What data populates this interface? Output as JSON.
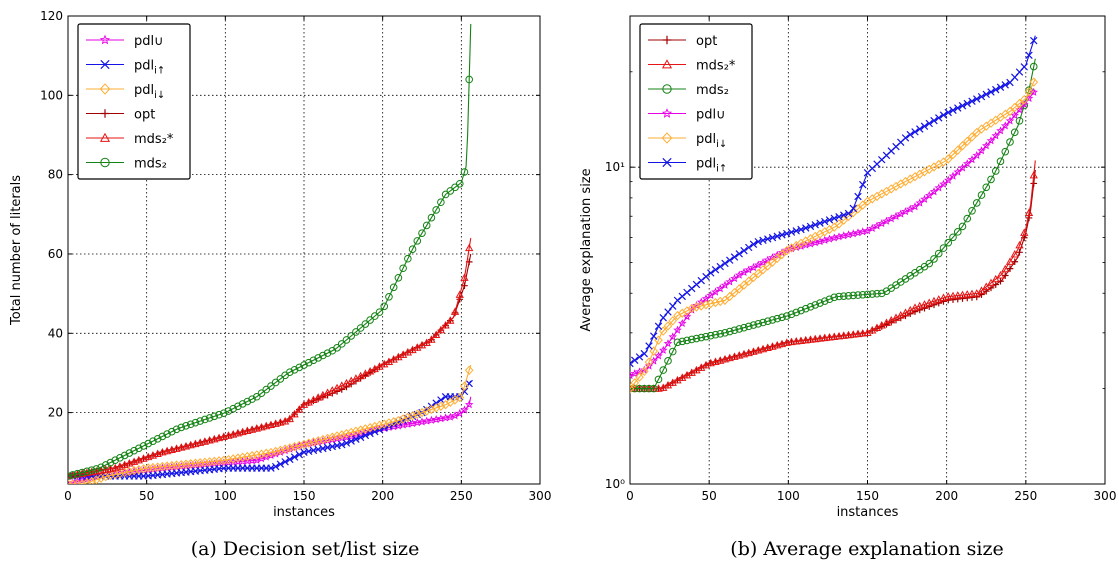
{
  "chart_data": [
    {
      "type": "line",
      "xlabel": "instances",
      "ylabel": "Total number of literals",
      "xlim": [
        0,
        300
      ],
      "ylim": [
        2,
        120
      ],
      "xticks": [
        0,
        50,
        100,
        150,
        200,
        250,
        300
      ],
      "yticks": [
        20,
        40,
        60,
        80,
        100,
        120
      ],
      "grid": true,
      "legend_position": "top-left",
      "caption": "(a) Decision set/list size",
      "series": [
        {
          "name": "pdl∪",
          "color": "#e600e6",
          "marker": "star",
          "x": [
            0,
            20,
            60,
            120,
            150,
            180,
            200,
            230,
            245,
            250,
            253,
            255,
            256
          ],
          "y": [
            2,
            4,
            6,
            8,
            12,
            14,
            16,
            18,
            19,
            20,
            21,
            22,
            24
          ]
        },
        {
          "name": "pdl_i↑",
          "color": "#1414e6",
          "marker": "x",
          "x": [
            0,
            25,
            50,
            100,
            130,
            150,
            175,
            200,
            225,
            240,
            250,
            253,
            256
          ],
          "y": [
            4,
            4,
            4,
            6,
            6,
            10,
            12,
            16,
            20,
            24,
            24,
            26,
            28
          ]
        },
        {
          "name": "pdl_i↓",
          "color": "#ffad33",
          "marker": "diamond",
          "x": [
            0,
            10,
            25,
            50,
            100,
            130,
            150,
            170,
            190,
            210,
            240,
            250,
            253,
            256
          ],
          "y": [
            2,
            2,
            4,
            6,
            8,
            10,
            12,
            14,
            16,
            18,
            22,
            24,
            28,
            32
          ]
        },
        {
          "name": "opt",
          "color": "#a00000",
          "marker": "plus",
          "x": [
            0,
            30,
            60,
            100,
            140,
            150,
            175,
            200,
            230,
            245,
            252,
            256
          ],
          "y": [
            4,
            6,
            10,
            14,
            18,
            22,
            26,
            32,
            38,
            44,
            52,
            60
          ]
        },
        {
          "name": "mds₂*",
          "color": "#e61414",
          "marker": "triangle",
          "x": [
            0,
            30,
            60,
            100,
            140,
            150,
            175,
            200,
            230,
            245,
            252,
            256
          ],
          "y": [
            4,
            6,
            10,
            14,
            18,
            22,
            27,
            32,
            38,
            44,
            54,
            64
          ]
        },
        {
          "name": "mds₂",
          "color": "#148214",
          "marker": "circle",
          "x": [
            0,
            20,
            40,
            70,
            100,
            120,
            140,
            150,
            170,
            200,
            220,
            240,
            250,
            253,
            254,
            256
          ],
          "y": [
            4,
            6,
            10,
            16,
            20,
            24,
            30,
            32,
            36,
            46,
            62,
            75,
            78,
            82,
            90,
            118
          ]
        }
      ]
    },
    {
      "type": "line",
      "xlabel": "instances",
      "ylabel": "Average explanation size",
      "xlim": [
        0,
        300
      ],
      "ylim": [
        1,
        30
      ],
      "yscale": "log",
      "xticks": [
        0,
        50,
        100,
        150,
        200,
        250,
        300
      ],
      "yticks": [
        1,
        10
      ],
      "ytick_labels": [
        "10⁰",
        "10¹"
      ],
      "grid": true,
      "legend_position": "top-left",
      "caption": "(b) Average explanation size",
      "series": [
        {
          "name": "opt",
          "color": "#a00000",
          "marker": "plus",
          "x": [
            0,
            20,
            50,
            100,
            150,
            180,
            200,
            220,
            235,
            245,
            250,
            253,
            256
          ],
          "y": [
            2.0,
            2.0,
            2.4,
            2.8,
            3.0,
            3.5,
            3.8,
            3.9,
            4.4,
            5.2,
            6.2,
            7.3,
            9.8
          ]
        },
        {
          "name": "mds₂*",
          "color": "#e61414",
          "marker": "triangle",
          "x": [
            0,
            20,
            50,
            100,
            150,
            180,
            200,
            220,
            235,
            245,
            250,
            253,
            256
          ],
          "y": [
            2.0,
            2.0,
            2.4,
            2.8,
            3.0,
            3.6,
            3.9,
            4.0,
            4.6,
            5.5,
            6.4,
            7.6,
            10.5
          ]
        },
        {
          "name": "mds₂",
          "color": "#148214",
          "marker": "circle",
          "x": [
            0,
            15,
            30,
            60,
            100,
            130,
            160,
            190,
            210,
            230,
            245,
            252,
            256
          ],
          "y": [
            2.0,
            2.0,
            2.8,
            3.0,
            3.4,
            3.9,
            4.0,
            5.0,
            6.5,
            9.5,
            13.5,
            17.5,
            22.0
          ]
        },
        {
          "name": "pdl∪",
          "color": "#e600e6",
          "marker": "star",
          "x": [
            0,
            10,
            20,
            40,
            70,
            100,
            130,
            150,
            180,
            200,
            220,
            240,
            250,
            256
          ],
          "y": [
            2.2,
            2.3,
            2.6,
            3.6,
            4.6,
            5.5,
            6.0,
            6.3,
            7.5,
            9.0,
            11.0,
            14.0,
            16.0,
            17.5
          ]
        },
        {
          "name": "pdl_i↓",
          "color": "#ffad33",
          "marker": "diamond",
          "x": [
            0,
            10,
            20,
            30,
            40,
            60,
            100,
            130,
            150,
            170,
            200,
            220,
            240,
            250,
            256
          ],
          "y": [
            2.0,
            2.3,
            3.0,
            3.4,
            3.6,
            3.8,
            5.5,
            6.5,
            7.8,
            8.8,
            10.5,
            13.0,
            15.0,
            16.5,
            19.0
          ]
        },
        {
          "name": "pdl_i↑",
          "color": "#1414e6",
          "marker": "x",
          "x": [
            0,
            10,
            20,
            30,
            50,
            80,
            110,
            140,
            150,
            175,
            200,
            220,
            240,
            250,
            256
          ],
          "y": [
            2.4,
            2.6,
            3.3,
            3.8,
            4.6,
            5.8,
            6.4,
            7.2,
            9.6,
            12.5,
            14.8,
            16.5,
            18.5,
            21.0,
            26.0
          ]
        }
      ]
    }
  ]
}
